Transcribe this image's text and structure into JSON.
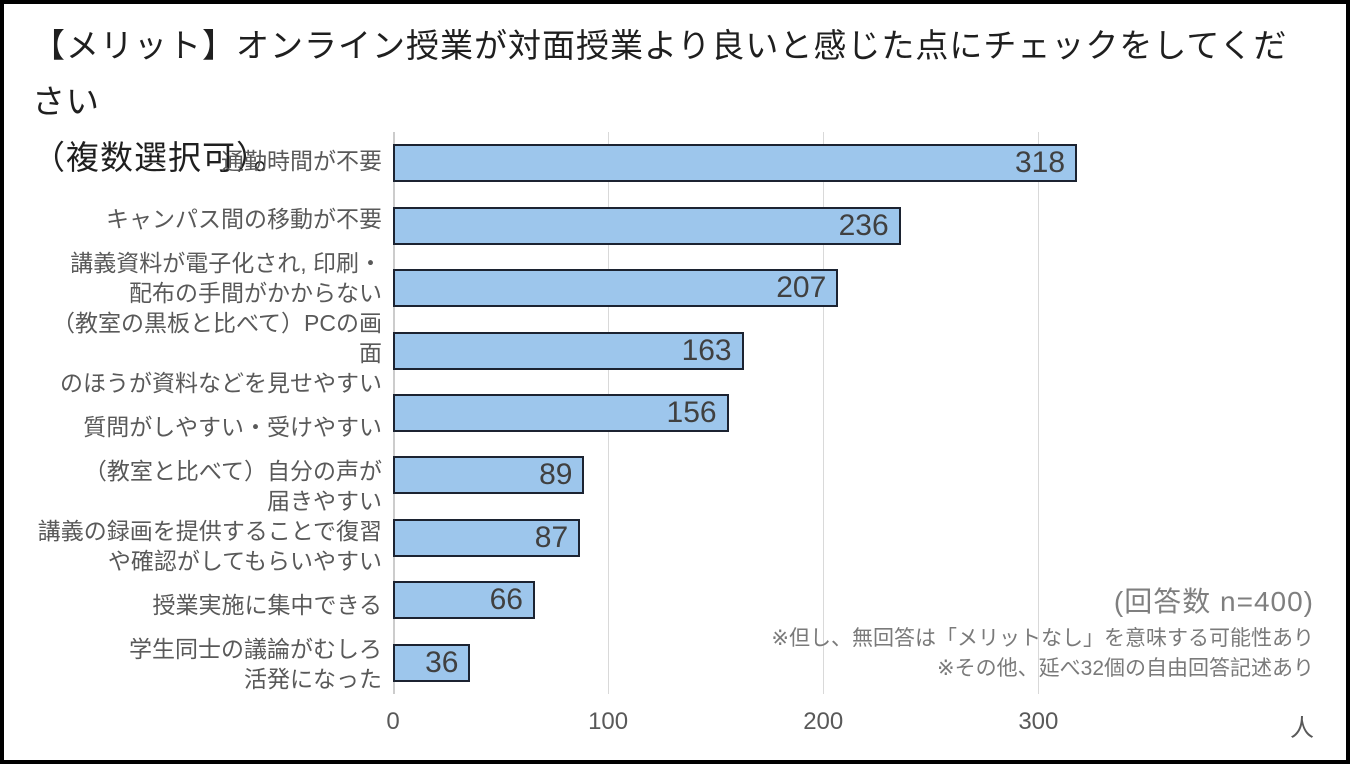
{
  "title": {
    "line1": "【メリット】オンライン授業が対面授業より良いと感じた点にチェックをしてください",
    "line2": "（複数選択可）。"
  },
  "chart_data": {
    "type": "bar",
    "orientation": "horizontal",
    "title": "【メリット】オンライン授業が対面授業より良いと感じた点にチェックをしてください（複数選択可）。",
    "categories": [
      "通勤時間が不要",
      "キャンパス間の移動が不要",
      "講義資料が電子化され, 印刷・\n配布の手間がかからない",
      "（教室の黒板と比べて）PCの画面\nのほうが資料などを見せやすい",
      "質問がしやすい・受けやすい",
      "（教室と比べて）自分の声が\n届きやすい",
      "講義の録画を提供することで復習\nや確認がしてもらいやすい",
      "授業実施に集中できる",
      "学生同士の議論がむしろ\n活発になった"
    ],
    "values": [
      318,
      236,
      207,
      163,
      156,
      89,
      87,
      66,
      36
    ],
    "xlabel": "人",
    "ylabel": "",
    "xlim": [
      0,
      430
    ],
    "xticks": [
      0,
      100,
      200,
      300
    ],
    "x_unit": "人",
    "grid": true,
    "legend": "none",
    "colors": {
      "bar_fill": "#9DC6EC",
      "bar_border": "#1C2331",
      "gridline": "#D9D9D9",
      "axis_line": "#CCCCCC",
      "category_label": "#595959",
      "value_label": "#404040",
      "annotation": "#7F7F7F",
      "title": "#1F1F1F",
      "frame_border": "#000000",
      "background": "#FFFFFF"
    }
  },
  "annotations": {
    "n_note": "(回答数 n=400)",
    "note1": "※但し、無回答は「メリットなし」を意味する可能性あり",
    "note2": "※その他、延べ32個の自由回答記述あり"
  }
}
